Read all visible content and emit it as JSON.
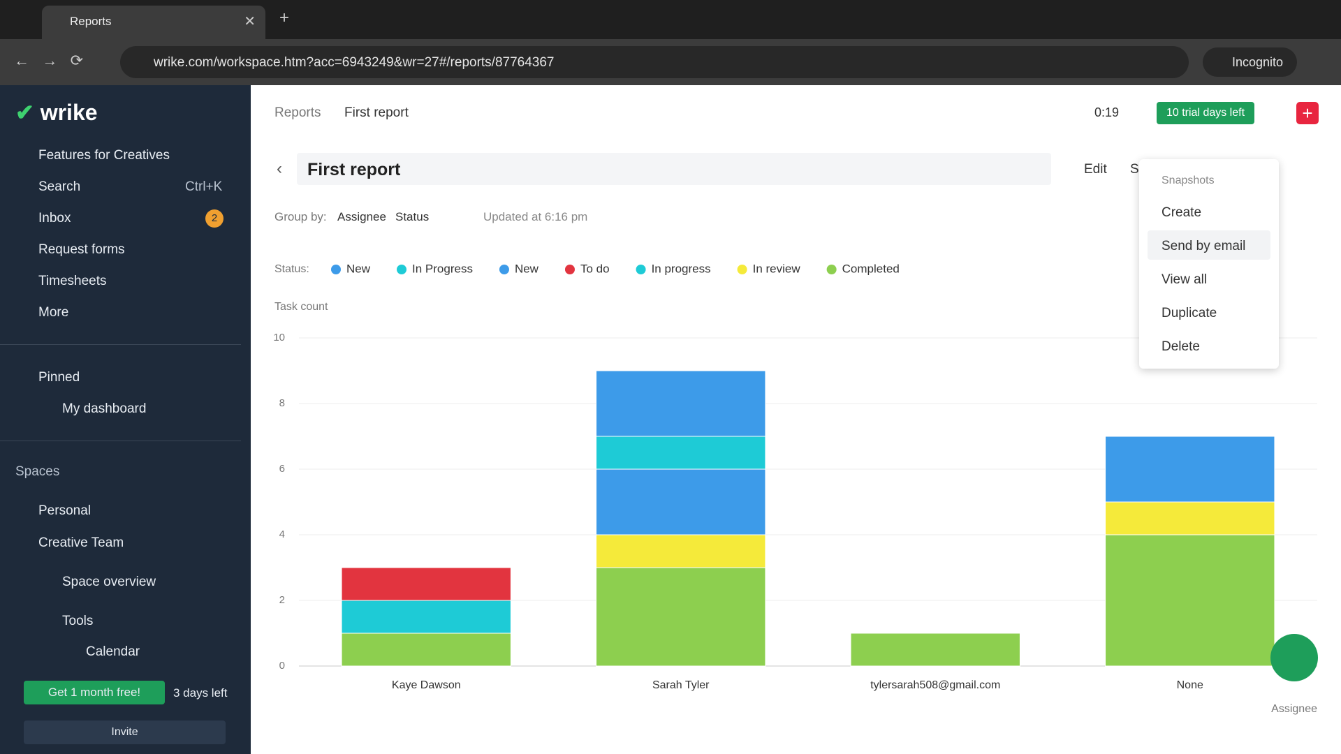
{
  "browser": {
    "tab_title": "Reports",
    "url": "wrike.com/workspace.htm?acc=6943249&wr=27#/reports/87764367",
    "profile": "Incognito"
  },
  "sidebar": {
    "logo": "wrike",
    "nav": [
      {
        "label": "Features for Creatives"
      },
      {
        "label": "Search",
        "shortcut": "Ctrl+K"
      },
      {
        "label": "Inbox",
        "badge": "2"
      },
      {
        "label": "Request forms"
      },
      {
        "label": "Timesheets"
      },
      {
        "label": "More"
      }
    ],
    "pinned_title": "Pinned",
    "pinned": [
      "My dashboard"
    ],
    "spaces_title": "Spaces",
    "spaces": [
      "Personal",
      "Creative Team"
    ],
    "space_items": [
      "Space overview",
      "Tools",
      "Calendar"
    ],
    "promo": "Get 1 month free!",
    "days_left": "3 days left",
    "invite": "Invite"
  },
  "header": {
    "breadcrumb": [
      "Reports",
      "First report"
    ],
    "timer": "0:19",
    "trial": "10 trial days left"
  },
  "report": {
    "title": "First report",
    "edit": "Edit",
    "more": "S",
    "group_by_label": "Group by:",
    "group_by": [
      "Assignee",
      "Status"
    ],
    "updated": "Updated at 6:16 pm"
  },
  "menu": {
    "title": "Snapshots",
    "items": [
      "Create",
      "Send by email",
      "View all",
      "Duplicate",
      "Delete"
    ]
  },
  "chart_data": {
    "type": "stacked_bar",
    "legend_title": "Status:",
    "y_label": "Task count",
    "x_label": "Assignee",
    "categories": [
      "Kaye Dawson",
      "Sarah Tyler",
      "tylersarah508@gmail.com",
      "None"
    ],
    "series": [
      {
        "name": "New",
        "color": "#3d9be9",
        "values": [
          0,
          2,
          0,
          0
        ]
      },
      {
        "name": "In Progress",
        "color": "#1ecbd6",
        "values": [
          0,
          1,
          0,
          0
        ]
      },
      {
        "name": "New",
        "color": "#3d9be9",
        "values": [
          0,
          2,
          0,
          2
        ]
      },
      {
        "name": "To do",
        "color": "#e2343f",
        "values": [
          1,
          0,
          0,
          0
        ]
      },
      {
        "name": "In progress",
        "color": "#1ecbd6",
        "values": [
          1,
          0,
          0,
          0
        ]
      },
      {
        "name": "In review",
        "color": "#f5ea3a",
        "values": [
          0,
          1,
          0,
          1
        ]
      },
      {
        "name": "Completed",
        "color": "#8dcf4f",
        "values": [
          1,
          3,
          1,
          4
        ]
      }
    ],
    "ylim": [
      0,
      10
    ],
    "yticks": [
      0,
      2,
      4,
      6,
      8,
      10
    ],
    "grid": true
  }
}
